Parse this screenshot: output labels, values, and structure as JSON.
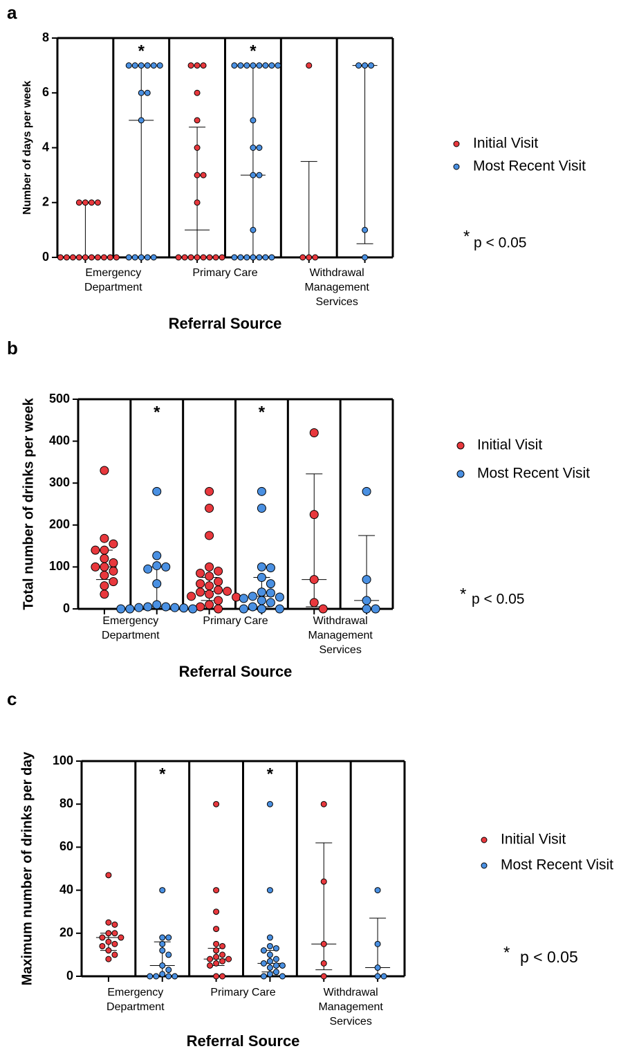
{
  "chart_data": [
    {
      "type": "scatter",
      "panel_label": "a",
      "y_label": "Number of days per week",
      "x_label": "Referral Source",
      "categories": [
        "Emergency\nDepartment",
        "Primary Care",
        "Withdrawal\nManagement\nServices"
      ],
      "ylim": [
        0,
        8
      ],
      "yticks": [
        0,
        2,
        4,
        6,
        8
      ],
      "legend_position": "right",
      "note_symbol": "*",
      "note_text": "p < 0.05",
      "series": [
        {
          "name": "Initial Visit",
          "color": "#e8383d",
          "values": [
            [
              2,
              2,
              2,
              2,
              0,
              0,
              0,
              0,
              0,
              0,
              0,
              0,
              0,
              0
            ],
            [
              7,
              7,
              7,
              6,
              5,
              4,
              3,
              3,
              2,
              0,
              0,
              0,
              0,
              0,
              0,
              0,
              0
            ],
            [
              7,
              0,
              0,
              0
            ]
          ],
          "median": [
            0,
            1,
            0
          ],
          "error_low": [
            0,
            0,
            0
          ],
          "error_high": [
            2,
            4.75,
            3.5
          ]
        },
        {
          "name": "Most Recent Visit",
          "color": "#4a90e2",
          "values": [
            [
              7,
              7,
              7,
              7,
              7,
              7,
              6,
              6,
              5,
              0,
              0,
              0,
              0,
              0
            ],
            [
              7,
              7,
              7,
              7,
              7,
              7,
              7,
              7,
              5,
              4,
              4,
              3,
              3,
              1,
              0,
              0,
              0,
              0,
              0,
              0,
              0
            ],
            [
              7,
              7,
              7,
              1,
              0
            ]
          ],
          "median": [
            5,
            3,
            7
          ],
          "error_low": [
            0,
            0,
            0.5
          ],
          "error_high": [
            7,
            7,
            7
          ],
          "significance_labels": [
            "*",
            "*",
            null
          ]
        }
      ]
    },
    {
      "type": "scatter",
      "panel_label": "b",
      "y_label": "Total number of drinks per week",
      "x_label": "Referral Source",
      "categories": [
        "Emergency\nDepartment",
        "Primary Care",
        "Withdrawal\nManagement\nServices"
      ],
      "ylim": [
        0,
        500
      ],
      "yticks": [
        0,
        100,
        200,
        300,
        400,
        500
      ],
      "legend_position": "right",
      "note_symbol": "*",
      "note_text": "p < 0.05",
      "series": [
        {
          "name": "Initial Visit",
          "color": "#e8383d",
          "values": [
            [
              330,
              168,
              155,
              140,
              140,
              120,
              110,
              100,
              100,
              90,
              80,
              65,
              55,
              35
            ],
            [
              280,
              240,
              175,
              100,
              90,
              85,
              78,
              65,
              60,
              55,
              45,
              42,
              40,
              35,
              30,
              28,
              20,
              10,
              5,
              0
            ],
            [
              420,
              225,
              70,
              15,
              0
            ]
          ],
          "median": [
            100,
            42,
            70
          ],
          "error_low": [
            70,
            20,
            5
          ],
          "error_high": [
            140,
            75,
            322
          ]
        },
        {
          "name": "Most Recent Visit",
          "color": "#4a90e2",
          "values": [
            [
              280,
              127,
              103,
              100,
              95,
              60,
              10,
              5,
              5,
              3,
              3,
              2,
              0,
              0,
              0
            ],
            [
              280,
              240,
              100,
              98,
              75,
              60,
              40,
              38,
              30,
              28,
              25,
              20,
              15,
              5,
              0,
              0,
              0
            ],
            [
              280,
              70,
              20,
              0,
              0
            ]
          ],
          "median": [
            5,
            30,
            20
          ],
          "error_low": [
            0,
            5,
            0
          ],
          "error_high": [
            100,
            75,
            175
          ],
          "significance_labels": [
            "*",
            "*",
            null
          ]
        }
      ]
    },
    {
      "type": "scatter",
      "panel_label": "c",
      "y_label": "Maximum number of drinks per day",
      "x_label": "Referral Source",
      "categories": [
        "Emergency\nDepartment",
        "Primary Care",
        "Withdrawal\nManagement\nServices"
      ],
      "ylim": [
        0,
        100
      ],
      "yticks": [
        0,
        20,
        40,
        60,
        80,
        100
      ],
      "legend_position": "right",
      "note_symbol": "*",
      "note_text": "p < 0.05",
      "series": [
        {
          "name": "Initial Visit",
          "color": "#e8383d",
          "values": [
            [
              47,
              25,
              24,
              20,
              20,
              18,
              18,
              16,
              15,
              14,
              12,
              10,
              8
            ],
            [
              80,
              40,
              30,
              22,
              15,
              14,
              12,
              10,
              9,
              8,
              8,
              7,
              6,
              5,
              0,
              0
            ],
            [
              80,
              44,
              15,
              6,
              0
            ]
          ],
          "median": [
            18,
            8,
            15
          ],
          "error_low": [
            12,
            5,
            3
          ],
          "error_high": [
            20,
            13,
            62
          ]
        },
        {
          "name": "Most Recent Visit",
          "color": "#4a90e2",
          "values": [
            [
              40,
              18,
              18,
              15,
              12,
              10,
              5,
              3,
              1,
              0,
              0,
              0,
              0
            ],
            [
              80,
              40,
              18,
              14,
              13,
              12,
              10,
              8,
              7,
              6,
              5,
              5,
              4,
              2,
              1,
              0,
              0
            ],
            [
              40,
              15,
              4,
              0,
              0
            ]
          ],
          "median": [
            5,
            6,
            4
          ],
          "error_low": [
            0,
            2,
            0
          ],
          "error_high": [
            16,
            12,
            27
          ],
          "significance_labels": [
            "*",
            "*",
            null
          ]
        }
      ]
    }
  ]
}
